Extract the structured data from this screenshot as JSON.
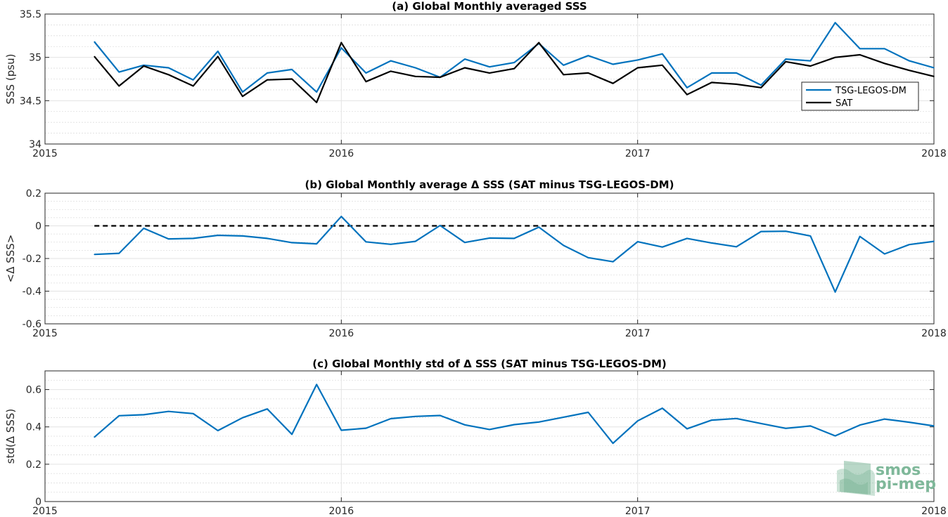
{
  "chart_data": [
    {
      "type": "line",
      "title": "(a) Global Monthly averaged SSS",
      "ylabel": "SSS (psu)",
      "xlabel": "",
      "xlim": [
        2015,
        2018
      ],
      "ylim": [
        34,
        35.5
      ],
      "xticks": [
        "2015",
        "2016",
        "2017",
        "2018"
      ],
      "yticks": [
        "34",
        "34.5",
        "35",
        "35.5"
      ],
      "ytick_values": [
        34,
        34.5,
        35,
        35.5
      ],
      "grid": true,
      "legend_position": "right",
      "x": [
        "2015-03",
        "2015-04",
        "2015-05",
        "2015-06",
        "2015-07",
        "2015-08",
        "2015-09",
        "2015-10",
        "2015-11",
        "2015-12",
        "2016-01",
        "2016-02",
        "2016-03",
        "2016-04",
        "2016-05",
        "2016-06",
        "2016-07",
        "2016-08",
        "2016-09",
        "2016-10",
        "2016-11",
        "2016-12",
        "2017-01",
        "2017-02",
        "2017-03",
        "2017-04",
        "2017-05",
        "2017-06",
        "2017-07",
        "2017-08",
        "2017-09",
        "2017-10",
        "2017-11",
        "2017-12",
        "2018-01"
      ],
      "series": [
        {
          "name": "TSG-LEGOS-DM",
          "color": "#0072bd",
          "values": [
            35.18,
            34.83,
            34.91,
            34.88,
            34.74,
            35.07,
            34.6,
            34.82,
            34.86,
            34.6,
            35.11,
            34.82,
            34.96,
            34.88,
            34.77,
            34.98,
            34.89,
            34.94,
            35.16,
            34.91,
            35.02,
            34.92,
            34.97,
            35.04,
            34.65,
            34.82,
            34.82,
            34.68,
            34.98,
            34.96,
            35.4,
            35.1,
            35.1,
            34.96,
            34.88
          ]
        },
        {
          "name": "SAT",
          "color": "#000000",
          "values": [
            35.01,
            34.67,
            34.9,
            34.8,
            34.67,
            35.01,
            34.55,
            34.74,
            34.75,
            34.48,
            35.17,
            34.72,
            34.84,
            34.78,
            34.77,
            34.88,
            34.82,
            34.87,
            35.17,
            34.8,
            34.82,
            34.7,
            34.88,
            34.91,
            34.57,
            34.71,
            34.69,
            34.65,
            34.95,
            34.9,
            35.0,
            35.03,
            34.93,
            34.85,
            34.78
          ]
        }
      ]
    },
    {
      "type": "line",
      "title": "(b) Global Monthly average Δ SSS (SAT minus TSG-LEGOS-DM)",
      "ylabel": "<Δ SSS>",
      "xlabel": "",
      "xlim": [
        2015,
        2018
      ],
      "ylim": [
        -0.6,
        0.2
      ],
      "xticks": [
        "2015",
        "2016",
        "2017",
        "2018"
      ],
      "yticks": [
        "-0.6",
        "-0.4",
        "-0.2",
        "0",
        "0.2"
      ],
      "ytick_values": [
        -0.6,
        -0.4,
        -0.2,
        0,
        0.2
      ],
      "grid": true,
      "reference_line": {
        "y": 0,
        "x_from": "2015-03",
        "x_to": "2018-01",
        "color": "#000000",
        "style": "dashed"
      },
      "x": [
        "2015-03",
        "2015-04",
        "2015-05",
        "2015-06",
        "2015-07",
        "2015-08",
        "2015-09",
        "2015-10",
        "2015-11",
        "2015-12",
        "2016-01",
        "2016-02",
        "2016-03",
        "2016-04",
        "2016-05",
        "2016-06",
        "2016-07",
        "2016-08",
        "2016-09",
        "2016-10",
        "2016-11",
        "2016-12",
        "2017-01",
        "2017-02",
        "2017-03",
        "2017-04",
        "2017-05",
        "2017-06",
        "2017-07",
        "2017-08",
        "2017-09",
        "2017-10",
        "2017-11",
        "2017-12",
        "2018-01"
      ],
      "series": [
        {
          "color": "#0072bd",
          "values": [
            -0.175,
            -0.168,
            -0.015,
            -0.08,
            -0.077,
            -0.058,
            -0.062,
            -0.077,
            -0.103,
            -0.11,
            0.057,
            -0.098,
            -0.113,
            -0.095,
            0.002,
            -0.102,
            -0.075,
            -0.077,
            -0.008,
            -0.12,
            -0.195,
            -0.22,
            -0.097,
            -0.13,
            -0.077,
            -0.105,
            -0.128,
            -0.035,
            -0.033,
            -0.062,
            -0.405,
            -0.065,
            -0.172,
            -0.115,
            -0.095
          ]
        }
      ]
    },
    {
      "type": "line",
      "title": "(c) Global Monthly std of Δ SSS (SAT minus TSG-LEGOS-DM)",
      "ylabel": "std(Δ SSS)",
      "xlabel": "",
      "xlim": [
        2015,
        2018
      ],
      "ylim": [
        0,
        0.7
      ],
      "xticks": [
        "2015",
        "2016",
        "2017",
        "2018"
      ],
      "yticks": [
        "0",
        "0.2",
        "0.4",
        "0.6"
      ],
      "ytick_values": [
        0,
        0.2,
        0.4,
        0.6
      ],
      "grid": true,
      "x": [
        "2015-03",
        "2015-04",
        "2015-05",
        "2015-06",
        "2015-07",
        "2015-08",
        "2015-09",
        "2015-10",
        "2015-11",
        "2015-12",
        "2016-01",
        "2016-02",
        "2016-03",
        "2016-04",
        "2016-05",
        "2016-06",
        "2016-07",
        "2016-08",
        "2016-09",
        "2016-10",
        "2016-11",
        "2016-12",
        "2017-01",
        "2017-02",
        "2017-03",
        "2017-04",
        "2017-05",
        "2017-06",
        "2017-07",
        "2017-08",
        "2017-09",
        "2017-10",
        "2017-11",
        "2017-12",
        "2018-01"
      ],
      "series": [
        {
          "color": "#0072bd",
          "values": [
            0.345,
            0.46,
            0.465,
            0.483,
            0.471,
            0.38,
            0.449,
            0.496,
            0.36,
            0.627,
            0.382,
            0.393,
            0.444,
            0.456,
            0.461,
            0.411,
            0.386,
            0.412,
            0.426,
            0.452,
            0.478,
            0.312,
            0.432,
            0.5,
            0.39,
            0.436,
            0.445,
            0.418,
            0.392,
            0.405,
            0.352,
            0.41,
            0.442,
            0.425,
            0.405
          ]
        }
      ]
    }
  ],
  "logo": {
    "line1": "smos",
    "line2": "pi-mep",
    "color": "#7fb89a"
  }
}
